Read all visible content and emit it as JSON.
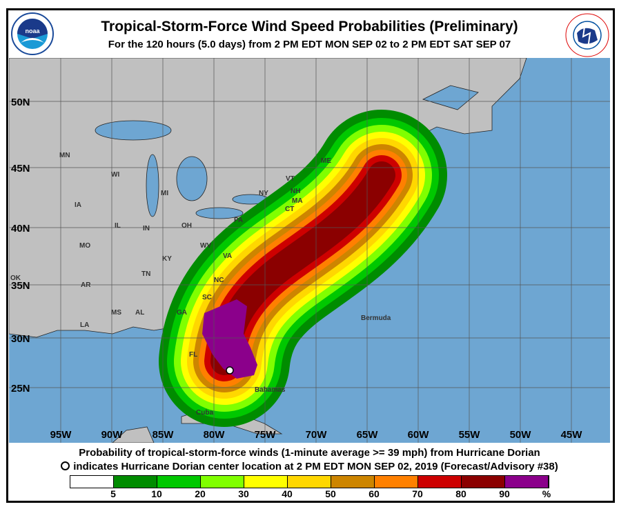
{
  "header": {
    "title": "Tropical-Storm-Force Wind Speed Probabilities (Preliminary)",
    "subtitle": "For the 120 hours (5.0 days) from 2 PM EDT MON SEP 02 to 2 PM EDT SAT SEP 07",
    "left_logo": "NOAA",
    "right_logo": "NATIONAL WEATHER SERVICE"
  },
  "map": {
    "lon_labels": [
      "95W",
      "90W",
      "85W",
      "80W",
      "75W",
      "70W",
      "65W",
      "60W",
      "55W",
      "50W",
      "45W"
    ],
    "lat_labels": [
      "50N",
      "45N",
      "40N",
      "35N",
      "30N",
      "25N"
    ],
    "place_labels": [
      "MN",
      "WI",
      "MI",
      "NY",
      "VT",
      "NH",
      "ME",
      "MA",
      "CT",
      "IA",
      "IL",
      "IN",
      "OH",
      "PA",
      "MO",
      "WV",
      "KY",
      "VA",
      "TN",
      "NC",
      "OK",
      "AR",
      "SC",
      "MS",
      "AL",
      "GA",
      "LA",
      "FL",
      "Bermuda",
      "Bahamas",
      "Cuba"
    ],
    "colors": {
      "land": "#c0c0c0",
      "ocean": "#6ea6d2",
      "grid": "#555555"
    },
    "storm": "Hurricane Dorian"
  },
  "caption": {
    "line1": "Probability of tropical-storm-force winds (1-minute average >= 39 mph) from Hurricane Dorian",
    "line2": "indicates Hurricane Dorian center location at 2 PM EDT MON SEP 02, 2019 (Forecast/Advisory #38)"
  },
  "legend": {
    "colors": [
      "#ffffff",
      "#008c00",
      "#00c800",
      "#80ff00",
      "#ffff00",
      "#ffd700",
      "#cd8500",
      "#ff8000",
      "#cd0000",
      "#8b0000",
      "#8b008b"
    ],
    "labels": [
      "5",
      "10",
      "20",
      "30",
      "40",
      "50",
      "60",
      "70",
      "80",
      "90",
      "%"
    ]
  }
}
